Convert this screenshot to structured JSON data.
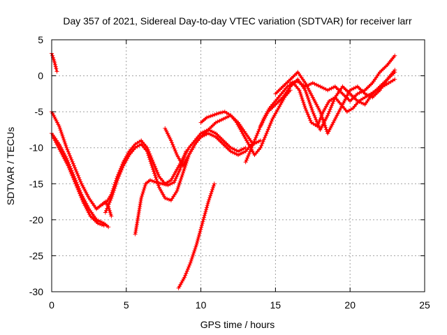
{
  "chart_data": {
    "type": "scatter",
    "title": "Day 357 of 2021, Sidereal Day-to-day VTEC variation (SDTVAR) for receiver larr",
    "xlabel": "GPS time / hours",
    "ylabel": "SDTVAR / TECUs",
    "xlim": [
      0,
      25
    ],
    "ylim": [
      -30,
      5
    ],
    "xticks": [
      0,
      5,
      10,
      15,
      20,
      25
    ],
    "yticks": [
      5,
      0,
      -5,
      -10,
      -15,
      -20,
      -25,
      -30
    ],
    "grid": true,
    "marker": "+",
    "color": "#ff0000",
    "series": [
      {
        "x": [
          0.0,
          0.1,
          0.2,
          0.3,
          0.35
        ],
        "y": [
          3.1,
          2.5,
          1.8,
          1.0,
          0.6
        ]
      },
      {
        "x": [
          0.0,
          0.5,
          1.0,
          1.5,
          2.0,
          2.5,
          3.0,
          3.3,
          3.6,
          3.8,
          4.0
        ],
        "y": [
          -5.0,
          -7.0,
          -10.0,
          -12.5,
          -15.0,
          -17.0,
          -18.5,
          -18.0,
          -17.5,
          -18.2,
          -19.5
        ]
      },
      {
        "x": [
          0.0,
          0.5,
          1.0,
          1.5,
          2.0,
          2.5,
          3.0,
          3.5,
          3.8
        ],
        "y": [
          -8.0,
          -9.5,
          -11.5,
          -14.0,
          -16.5,
          -18.5,
          -20.0,
          -20.5,
          -21.0
        ]
      },
      {
        "x": [
          0.1,
          0.6,
          1.1,
          1.6,
          2.1,
          2.6,
          3.1,
          3.5
        ],
        "y": [
          -8.5,
          -10.5,
          -12.5,
          -15.0,
          -17.5,
          -19.5,
          -20.5,
          -20.8
        ]
      },
      {
        "x": [
          3.3,
          3.7,
          4.0,
          4.4,
          4.8,
          5.2,
          5.6,
          6.0,
          6.4,
          6.8,
          7.2,
          7.6,
          8.0,
          8.4,
          8.8,
          9.2,
          9.6,
          10.0,
          10.5,
          11.0,
          11.5,
          12.0,
          12.5,
          13.0
        ],
        "y": [
          -18.0,
          -17.5,
          -16.5,
          -14.0,
          -12.0,
          -10.5,
          -9.5,
          -9.0,
          -10.0,
          -12.0,
          -14.0,
          -15.0,
          -14.5,
          -13.0,
          -11.5,
          -10.0,
          -9.0,
          -8.0,
          -7.5,
          -8.0,
          -9.0,
          -10.0,
          -10.5,
          -10.0
        ]
      },
      {
        "x": [
          3.6,
          4.0,
          4.4,
          4.8,
          5.2,
          5.6,
          6.0,
          6.4,
          6.8,
          7.2,
          7.6,
          8.0,
          8.4,
          8.8,
          9.2,
          9.6,
          10.0,
          10.5,
          11.0,
          11.5,
          12.0,
          12.5,
          13.0,
          13.4
        ],
        "y": [
          -19.0,
          -17.0,
          -14.5,
          -12.5,
          -11.0,
          -10.0,
          -9.5,
          -10.5,
          -13.0,
          -15.5,
          -17.0,
          -17.3,
          -16.0,
          -13.5,
          -11.0,
          -9.5,
          -8.5,
          -8.0,
          -8.5,
          -9.5,
          -10.5,
          -11.0,
          -10.5,
          -9.5
        ]
      },
      {
        "x": [
          5.6,
          5.8,
          6.0,
          6.3,
          6.6,
          7.0,
          7.4,
          7.8,
          8.2,
          8.6,
          9.0
        ],
        "y": [
          -22.0,
          -19.5,
          -17.0,
          -15.0,
          -14.5,
          -14.8,
          -15.0,
          -15.2,
          -14.8,
          -13.0,
          -10.5
        ]
      },
      {
        "x": [
          7.6,
          8.0,
          8.4,
          8.8,
          9.2,
          9.6,
          10.0,
          10.5,
          11.0,
          11.5,
          12.0,
          12.5,
          13.0,
          13.5,
          14.0
        ],
        "y": [
          -7.3,
          -9.0,
          -11.0,
          -12.5,
          -11.0,
          -9.5,
          -8.5,
          -7.5,
          -6.5,
          -6.0,
          -5.5,
          -6.5,
          -8.0,
          -9.5,
          -9.0
        ]
      },
      {
        "x": [
          10.0,
          10.4,
          10.8,
          11.2,
          11.6,
          12.0,
          12.4,
          12.8,
          13.2,
          13.6,
          14.0,
          14.4,
          14.8,
          15.2,
          15.6,
          16.0
        ],
        "y": [
          -6.5,
          -5.8,
          -5.5,
          -5.2,
          -5.0,
          -5.5,
          -6.5,
          -8.0,
          -9.5,
          -11.0,
          -10.0,
          -8.0,
          -6.0,
          -4.5,
          -3.0,
          -2.0
        ]
      },
      {
        "x": [
          8.5,
          8.9,
          9.3,
          9.7,
          10.1,
          10.5,
          10.9
        ],
        "y": [
          -29.5,
          -28.0,
          -26.0,
          -23.5,
          -20.5,
          -17.5,
          -15.0
        ]
      },
      {
        "x": [
          13.0,
          13.4,
          13.8,
          14.2,
          14.6,
          15.0,
          15.4,
          15.8,
          16.2,
          16.6,
          17.0,
          17.4,
          17.8,
          18.2,
          18.6,
          19.0,
          19.4,
          19.8,
          20.2,
          20.6,
          21.0,
          21.4,
          21.8,
          22.2,
          22.6,
          23.0
        ],
        "y": [
          -12.0,
          -10.0,
          -8.0,
          -6.0,
          -4.5,
          -3.5,
          -2.5,
          -1.5,
          -1.0,
          -2.0,
          -4.5,
          -6.5,
          -7.0,
          -5.0,
          -3.5,
          -3.0,
          -4.0,
          -5.0,
          -4.5,
          -3.5,
          -3.0,
          -2.5,
          -2.0,
          -1.5,
          -1.0,
          -0.5
        ]
      },
      {
        "x": [
          14.0,
          14.5,
          15.0,
          15.5,
          16.0,
          16.5,
          17.0,
          17.5,
          18.0,
          18.5,
          19.0,
          19.5,
          20.0,
          20.5,
          21.0,
          21.5,
          22.0,
          22.5,
          23.0
        ],
        "y": [
          -7.0,
          -5.0,
          -4.0,
          -3.0,
          -1.5,
          -0.5,
          -2.0,
          -5.0,
          -7.5,
          -5.5,
          -3.0,
          -1.5,
          -2.5,
          -3.5,
          -4.0,
          -2.5,
          -1.5,
          -0.5,
          0.5
        ]
      },
      {
        "x": [
          15.0,
          15.5,
          16.0,
          16.5,
          17.0,
          17.5,
          18.0,
          18.5,
          19.0,
          19.5,
          20.0,
          20.5,
          21.0,
          21.5,
          22.0,
          22.5,
          23.0
        ],
        "y": [
          -2.5,
          -1.5,
          -0.5,
          0.5,
          -1.0,
          -3.0,
          -5.0,
          -8.0,
          -6.0,
          -4.0,
          -2.0,
          -1.5,
          -2.5,
          -3.0,
          -2.0,
          -0.5,
          0.8
        ]
      },
      {
        "x": [
          16.0,
          16.5,
          17.0,
          17.5,
          18.0,
          18.5,
          19.0,
          19.5,
          20.0,
          20.5,
          21.0,
          21.5,
          22.0,
          22.5,
          23.0
        ],
        "y": [
          -1.0,
          -0.8,
          -1.5,
          -1.0,
          -1.5,
          -2.0,
          -1.5,
          -2.5,
          -3.5,
          -2.5,
          -2.0,
          -1.0,
          0.5,
          1.5,
          2.8
        ]
      }
    ]
  }
}
